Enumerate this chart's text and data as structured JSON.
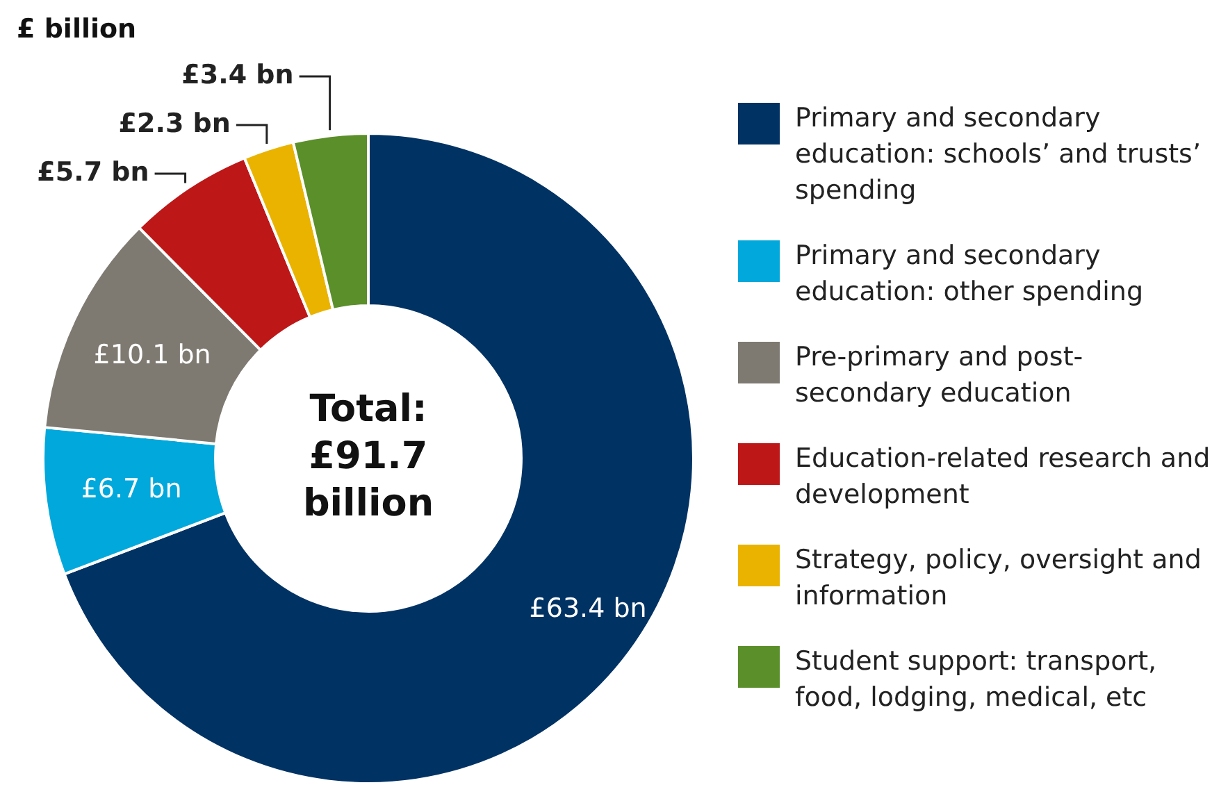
{
  "chart_data": {
    "type": "donut",
    "title": "£ billion",
    "categories": [
      "Primary and secondary education: schools’ and trusts’ spending",
      "Primary and secondary education: other spending",
      "Pre-primary and post-secondary education",
      "Education-related research and development",
      "Strategy, policy, oversight and information",
      "Student support: transport, food, lodging, medical, etc"
    ],
    "values": [
      63.4,
      6.7,
      10.1,
      5.7,
      2.3,
      3.4
    ],
    "colors": [
      "#003263",
      "#00a8dc",
      "#7e7a72",
      "#bd1718",
      "#e9b300",
      "#5b8f29"
    ],
    "value_labels": [
      "£63.4 bn",
      "£6.7 bn",
      "£10.1 bn",
      "£5.7 bn",
      "£2.3 bn",
      "£3.4 bn"
    ],
    "annotations": [
      "Total: £91.7 billion"
    ],
    "legend": "right"
  }
}
